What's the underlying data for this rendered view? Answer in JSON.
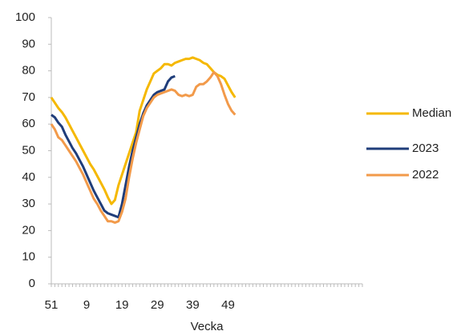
{
  "chart_data": {
    "type": "line",
    "x_label": "Vecka",
    "categories": [
      "51",
      null,
      null,
      null,
      null,
      null,
      null,
      null,
      null,
      null,
      "9",
      null,
      null,
      null,
      null,
      null,
      null,
      null,
      null,
      null,
      "19",
      null,
      null,
      null,
      null,
      null,
      null,
      null,
      null,
      null,
      "29",
      null,
      null,
      null,
      null,
      null,
      null,
      null,
      null,
      null,
      "39",
      null,
      null,
      null,
      null,
      null,
      null,
      null,
      null,
      null,
      "49",
      null,
      null,
      null,
      null,
      null,
      null,
      null,
      null,
      null,
      null,
      null,
      null,
      null,
      null,
      null,
      null,
      null,
      null,
      null,
      null,
      null,
      null,
      null,
      null,
      null,
      null,
      null,
      null,
      null,
      null,
      null,
      null,
      null,
      null,
      null,
      null,
      null,
      null
    ],
    "series": [
      {
        "name": "Median",
        "color": "#f5b800",
        "values": [
          70,
          68,
          66,
          64.5,
          62.5,
          60,
          57.5,
          55,
          52.5,
          50,
          47.5,
          45,
          43,
          40.5,
          38,
          35.5,
          32.5,
          30,
          31.5,
          37,
          41,
          45,
          49,
          53,
          57,
          65,
          69,
          73,
          76,
          79,
          80,
          81,
          82.5,
          82.5,
          82,
          83,
          83.5,
          84,
          84.5,
          84.5,
          85,
          84.5,
          84,
          83,
          82.5,
          81,
          79.5,
          78.5,
          78,
          77,
          74.5,
          72,
          70,
          null,
          null,
          null,
          null,
          null,
          null,
          null,
          null,
          null,
          null,
          null,
          null,
          null,
          null,
          null,
          null,
          null,
          null,
          null,
          null,
          null,
          null,
          null,
          null,
          null,
          null,
          null,
          null,
          null,
          null,
          null,
          null,
          null,
          null,
          null,
          null
        ]
      },
      {
        "name": "2023",
        "color": "#1f3d7a",
        "values": [
          63.5,
          62.5,
          60.5,
          59,
          56,
          53.5,
          51,
          49,
          46.5,
          44,
          41,
          38,
          35,
          32.5,
          30,
          27.5,
          26.5,
          26,
          25.5,
          25,
          30,
          37,
          44,
          50,
          55,
          60,
          64,
          67,
          69,
          71,
          72,
          72.5,
          73,
          76,
          77.5,
          78,
          null,
          null,
          null,
          null,
          null,
          null,
          null,
          null,
          null,
          null,
          null,
          null,
          null,
          null,
          null,
          null,
          null,
          null,
          null,
          null,
          null,
          null,
          null,
          null,
          null,
          null,
          null,
          null,
          null,
          null,
          null,
          null,
          null,
          null,
          null,
          null,
          null,
          null,
          null,
          null,
          null,
          null,
          null,
          null,
          null,
          null,
          null,
          null,
          null,
          null,
          null,
          null,
          null
        ]
      },
      {
        "name": "2022",
        "color": "#f29a4a",
        "values": [
          60,
          58,
          55,
          54,
          52,
          50,
          48,
          46,
          43.5,
          41,
          38,
          35,
          32,
          30,
          27.5,
          25.5,
          23.5,
          23.5,
          23,
          23.5,
          27,
          32,
          40,
          47,
          53,
          58,
          63,
          66,
          68,
          70,
          71,
          71.5,
          72,
          72.5,
          73,
          72.5,
          71,
          70.5,
          71,
          70.5,
          71,
          74,
          75,
          75,
          76,
          77.5,
          79.5,
          78,
          75,
          71,
          67.5,
          65,
          63.5,
          null,
          null,
          null,
          null,
          null,
          null,
          null,
          null,
          null,
          null,
          null,
          null,
          null,
          null,
          null,
          null,
          null,
          null,
          null,
          null,
          null,
          null,
          null,
          null,
          null,
          null,
          null,
          null,
          null,
          null,
          null,
          null,
          null,
          null,
          null,
          null
        ]
      }
    ],
    "ylim": [
      0,
      100
    ],
    "yticks": [
      0,
      10,
      20,
      30,
      40,
      50,
      60,
      70,
      80,
      90,
      100
    ],
    "legend": "right"
  }
}
